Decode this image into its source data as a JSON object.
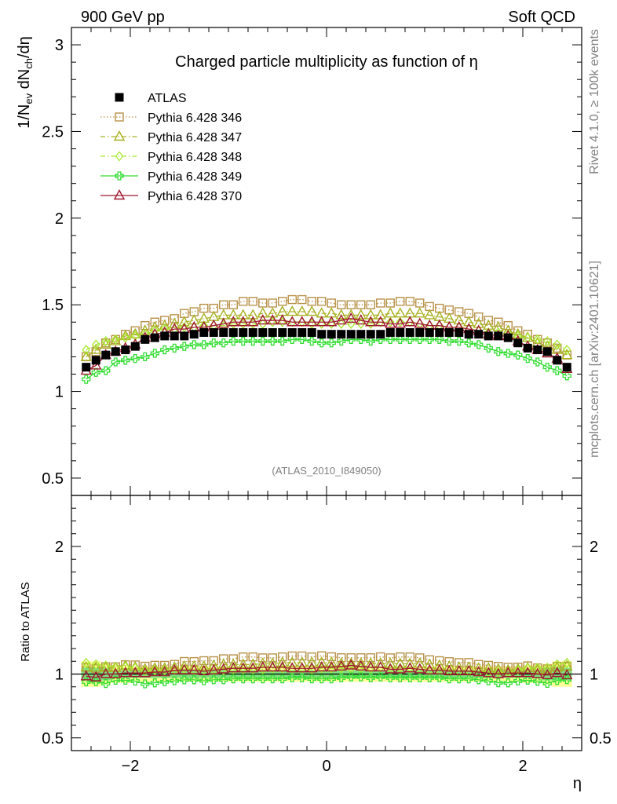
{
  "header": {
    "left": "900 GeV pp",
    "right": "Soft QCD"
  },
  "side_texts": {
    "rivet": "Rivet 4.1.0, ≥ 100k events",
    "mcplots": "mcplots.cern.ch [arXiv:2401.10621]"
  },
  "chart_data": [
    {
      "type": "scatter",
      "panel": "main",
      "title": "Charged particle multiplicity as function of η",
      "ylabel": "1/N_ev dN_ch/dη",
      "xlabel": "η",
      "watermark": "(ATLAS_2010_I849050)",
      "xlim": [
        -2.6,
        2.6
      ],
      "ylim": [
        0.4,
        3.1
      ],
      "xticks": [
        "−2",
        "0",
        "2"
      ],
      "yticks": [
        "0.5",
        "1",
        "1.5",
        "2",
        "2.5",
        "3"
      ],
      "legend_position": "top-left",
      "x": [
        -2.45,
        -2.35,
        -2.25,
        -2.15,
        -2.05,
        -1.95,
        -1.85,
        -1.75,
        -1.65,
        -1.55,
        -1.45,
        -1.35,
        -1.25,
        -1.15,
        -1.05,
        -0.95,
        -0.85,
        -0.75,
        -0.65,
        -0.55,
        -0.45,
        -0.35,
        -0.25,
        -0.15,
        -0.05,
        0.05,
        0.15,
        0.25,
        0.35,
        0.45,
        0.55,
        0.65,
        0.75,
        0.85,
        0.95,
        1.05,
        1.15,
        1.25,
        1.35,
        1.45,
        1.55,
        1.65,
        1.75,
        1.85,
        1.95,
        2.05,
        2.15,
        2.25,
        2.35,
        2.45
      ],
      "series": [
        {
          "name": "ATLAS",
          "color": "#000000",
          "marker": "filled-square",
          "line": "none",
          "values": [
            1.14,
            1.18,
            1.21,
            1.23,
            1.24,
            1.26,
            1.3,
            1.31,
            1.32,
            1.32,
            1.32,
            1.33,
            1.34,
            1.34,
            1.34,
            1.34,
            1.34,
            1.34,
            1.34,
            1.34,
            1.34,
            1.34,
            1.34,
            1.34,
            1.33,
            1.33,
            1.33,
            1.33,
            1.33,
            1.33,
            1.33,
            1.34,
            1.34,
            1.34,
            1.34,
            1.34,
            1.34,
            1.34,
            1.34,
            1.33,
            1.33,
            1.32,
            1.32,
            1.31,
            1.28,
            1.25,
            1.24,
            1.23,
            1.18,
            1.14
          ]
        },
        {
          "name": "Pythia 6.428 346",
          "color": "#b8924a",
          "marker": "open-square",
          "line": "dotted",
          "values": [
            1.2,
            1.23,
            1.28,
            1.3,
            1.33,
            1.35,
            1.38,
            1.4,
            1.41,
            1.42,
            1.45,
            1.46,
            1.48,
            1.48,
            1.5,
            1.5,
            1.52,
            1.52,
            1.51,
            1.51,
            1.52,
            1.53,
            1.53,
            1.52,
            1.52,
            1.51,
            1.5,
            1.5,
            1.5,
            1.5,
            1.51,
            1.51,
            1.52,
            1.52,
            1.51,
            1.49,
            1.48,
            1.47,
            1.46,
            1.45,
            1.43,
            1.41,
            1.4,
            1.38,
            1.35,
            1.33,
            1.3,
            1.28,
            1.25,
            1.21
          ]
        },
        {
          "name": "Pythia 6.428 347",
          "color": "#a8b020",
          "marker": "open-triangle",
          "line": "dashdot",
          "values": [
            1.2,
            1.24,
            1.27,
            1.29,
            1.32,
            1.33,
            1.35,
            1.37,
            1.38,
            1.39,
            1.4,
            1.41,
            1.42,
            1.43,
            1.44,
            1.44,
            1.44,
            1.44,
            1.45,
            1.45,
            1.46,
            1.46,
            1.46,
            1.46,
            1.45,
            1.45,
            1.44,
            1.44,
            1.44,
            1.44,
            1.44,
            1.45,
            1.45,
            1.45,
            1.45,
            1.44,
            1.43,
            1.42,
            1.41,
            1.4,
            1.39,
            1.38,
            1.37,
            1.35,
            1.33,
            1.31,
            1.28,
            1.26,
            1.24,
            1.21
          ]
        },
        {
          "name": "Pythia 6.428 348",
          "color": "#a8e830",
          "marker": "open-diamond",
          "line": "dashdot",
          "values": [
            1.24,
            1.27,
            1.29,
            1.3,
            1.31,
            1.32,
            1.33,
            1.35,
            1.36,
            1.36,
            1.37,
            1.37,
            1.38,
            1.38,
            1.38,
            1.39,
            1.39,
            1.39,
            1.39,
            1.4,
            1.4,
            1.4,
            1.4,
            1.39,
            1.39,
            1.39,
            1.39,
            1.39,
            1.39,
            1.39,
            1.4,
            1.4,
            1.4,
            1.4,
            1.39,
            1.38,
            1.38,
            1.37,
            1.37,
            1.36,
            1.35,
            1.34,
            1.34,
            1.33,
            1.32,
            1.31,
            1.3,
            1.29,
            1.27,
            1.24
          ]
        },
        {
          "name": "Pythia 6.428 349",
          "color": "#33dd33",
          "marker": "open-cross",
          "line": "solid",
          "values": [
            1.07,
            1.11,
            1.12,
            1.17,
            1.18,
            1.19,
            1.2,
            1.22,
            1.24,
            1.25,
            1.26,
            1.27,
            1.27,
            1.28,
            1.28,
            1.29,
            1.29,
            1.29,
            1.29,
            1.29,
            1.29,
            1.3,
            1.3,
            1.29,
            1.28,
            1.28,
            1.29,
            1.3,
            1.3,
            1.29,
            1.3,
            1.3,
            1.3,
            1.3,
            1.3,
            1.3,
            1.3,
            1.29,
            1.29,
            1.28,
            1.27,
            1.25,
            1.23,
            1.22,
            1.21,
            1.19,
            1.17,
            1.14,
            1.12,
            1.09
          ]
        },
        {
          "name": "Pythia 6.428 370",
          "color": "#a01830",
          "marker": "open-triangle",
          "line": "solid",
          "values": [
            1.12,
            1.15,
            1.21,
            1.23,
            1.25,
            1.27,
            1.31,
            1.33,
            1.34,
            1.36,
            1.36,
            1.37,
            1.37,
            1.38,
            1.39,
            1.4,
            1.4,
            1.4,
            1.41,
            1.41,
            1.41,
            1.4,
            1.4,
            1.4,
            1.4,
            1.4,
            1.41,
            1.42,
            1.41,
            1.4,
            1.4,
            1.39,
            1.39,
            1.4,
            1.39,
            1.38,
            1.38,
            1.37,
            1.37,
            1.36,
            1.35,
            1.33,
            1.32,
            1.32,
            1.29,
            1.26,
            1.24,
            1.22,
            1.19,
            1.13
          ]
        }
      ]
    },
    {
      "type": "scatter",
      "panel": "ratio",
      "ylabel": "Ratio to ATLAS",
      "xlim": [
        -2.6,
        2.6
      ],
      "ylim": [
        0.4,
        2.4
      ],
      "yticks": [
        "0.5",
        "1",
        "2"
      ],
      "reference_line": 1,
      "band_inner": {
        "color": "#7fe07f",
        "halfwidth": [
          0.05,
          0.05,
          0.05,
          0.03,
          0.03,
          0.03,
          0.03,
          0.03,
          0.03,
          0.03,
          0.03,
          0.03,
          0.03,
          0.03,
          0.03,
          0.03,
          0.03,
          0.03,
          0.03,
          0.03,
          0.03,
          0.03,
          0.03,
          0.03,
          0.03,
          0.03,
          0.03,
          0.03,
          0.03,
          0.03,
          0.03,
          0.03,
          0.03,
          0.03,
          0.03,
          0.03,
          0.03,
          0.03,
          0.03,
          0.03,
          0.03,
          0.03,
          0.03,
          0.03,
          0.03,
          0.03,
          0.03,
          0.05,
          0.05,
          0.05
        ]
      },
      "band_outer": {
        "color": "#ffff99",
        "halfwidth": [
          0.1,
          0.1,
          0.08,
          0.07,
          0.07,
          0.06,
          0.06,
          0.06,
          0.06,
          0.06,
          0.06,
          0.06,
          0.06,
          0.06,
          0.06,
          0.06,
          0.06,
          0.06,
          0.06,
          0.06,
          0.06,
          0.06,
          0.06,
          0.06,
          0.06,
          0.06,
          0.06,
          0.06,
          0.06,
          0.06,
          0.06,
          0.06,
          0.06,
          0.06,
          0.06,
          0.06,
          0.06,
          0.06,
          0.06,
          0.06,
          0.06,
          0.06,
          0.06,
          0.06,
          0.06,
          0.07,
          0.07,
          0.08,
          0.1,
          0.1
        ]
      }
    }
  ]
}
